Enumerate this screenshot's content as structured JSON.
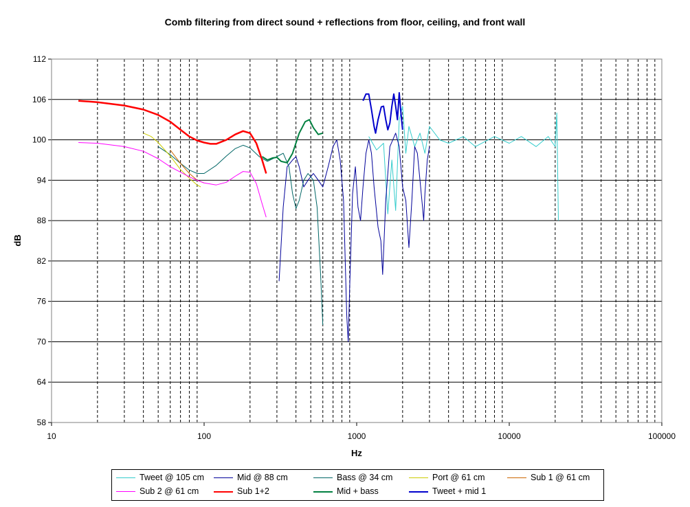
{
  "chart_data": {
    "type": "line",
    "title": "Comb filtering from direct sound + reflections from floor, ceiling, and front wall",
    "xlabel": "Hz",
    "ylabel": "dB",
    "x_scale": "log",
    "xlim": [
      10,
      100000
    ],
    "ylim": [
      58,
      112
    ],
    "y_ticks": [
      58,
      64,
      70,
      76,
      82,
      88,
      94,
      100,
      106,
      112
    ],
    "x_tick_labels": [
      "10",
      "100",
      "1000",
      "10000",
      "100000"
    ],
    "grid": "y major solid, x minor dashed",
    "legend": "bottom",
    "series": [
      {
        "name": "Tweet @ 105 cm",
        "color": "#33CCCC",
        "width": 1,
        "points": [
          [
            1200,
            100.5
          ],
          [
            1350,
            98.5
          ],
          [
            1500,
            99.5
          ],
          [
            1600,
            89
          ],
          [
            1700,
            97
          ],
          [
            1800,
            89.5
          ],
          [
            1900,
            103
          ],
          [
            2000,
            105
          ],
          [
            2100,
            98
          ],
          [
            2200,
            102
          ],
          [
            2400,
            99
          ],
          [
            2600,
            101
          ],
          [
            2800,
            98
          ],
          [
            3000,
            102
          ],
          [
            3500,
            100
          ],
          [
            4000,
            99.5
          ],
          [
            5000,
            100.5
          ],
          [
            6000,
            99
          ],
          [
            8000,
            100.5
          ],
          [
            10000,
            99.5
          ],
          [
            12000,
            100.5
          ],
          [
            15000,
            99
          ],
          [
            18000,
            100.5
          ],
          [
            20000,
            99
          ],
          [
            20500,
            104
          ],
          [
            21000,
            88
          ]
        ]
      },
      {
        "name": "Mid @ 88 cm",
        "color": "#000099",
        "width": 1,
        "points": [
          [
            310,
            79
          ],
          [
            330,
            90
          ],
          [
            350,
            96
          ],
          [
            380,
            97
          ],
          [
            400,
            97.5
          ],
          [
            420,
            96
          ],
          [
            450,
            93
          ],
          [
            480,
            94
          ],
          [
            520,
            95
          ],
          [
            560,
            94
          ],
          [
            600,
            93
          ],
          [
            650,
            96
          ],
          [
            700,
            99
          ],
          [
            740,
            100
          ],
          [
            780,
            97
          ],
          [
            820,
            91
          ],
          [
            860,
            74
          ],
          [
            880,
            70
          ],
          [
            900,
            78
          ],
          [
            940,
            92
          ],
          [
            980,
            96
          ],
          [
            1020,
            90
          ],
          [
            1060,
            88
          ],
          [
            1100,
            93
          ],
          [
            1150,
            98
          ],
          [
            1200,
            100
          ],
          [
            1250,
            98
          ],
          [
            1300,
            93
          ],
          [
            1380,
            87
          ],
          [
            1440,
            85
          ],
          [
            1480,
            80
          ],
          [
            1550,
            91
          ],
          [
            1650,
            99
          ],
          [
            1800,
            101
          ],
          [
            1900,
            99
          ],
          [
            2000,
            93
          ],
          [
            2100,
            91
          ],
          [
            2200,
            84
          ],
          [
            2300,
            91
          ],
          [
            2400,
            99
          ],
          [
            2500,
            98
          ],
          [
            2600,
            94
          ],
          [
            2700,
            90
          ],
          [
            2750,
            88
          ],
          [
            2800,
            92
          ],
          [
            2900,
            97
          ],
          [
            3000,
            99
          ]
        ]
      },
      {
        "name": "Bass @ 34 cm",
        "color": "#006666",
        "width": 1,
        "points": [
          [
            50,
            99
          ],
          [
            60,
            97.8
          ],
          [
            70,
            96.5
          ],
          [
            80,
            95.5
          ],
          [
            90,
            95
          ],
          [
            100,
            95
          ],
          [
            120,
            96.2
          ],
          [
            140,
            97.6
          ],
          [
            160,
            98.7
          ],
          [
            180,
            99.2
          ],
          [
            200,
            98.8
          ],
          [
            230,
            97.5
          ],
          [
            260,
            96.8
          ],
          [
            300,
            97.5
          ],
          [
            330,
            98
          ],
          [
            360,
            96
          ],
          [
            380,
            92
          ],
          [
            400,
            89.8
          ],
          [
            420,
            91
          ],
          [
            450,
            94
          ],
          [
            480,
            95
          ],
          [
            520,
            94
          ],
          [
            550,
            90
          ],
          [
            580,
            80
          ],
          [
            600,
            72.5
          ]
        ]
      },
      {
        "name": "Port @ 61 cm",
        "color": "#CCCC00",
        "width": 1,
        "points": [
          [
            40,
            101
          ],
          [
            45,
            100.5
          ],
          [
            50,
            99.6
          ],
          [
            60,
            97.6
          ],
          [
            70,
            95.6
          ],
          [
            80,
            94.3
          ],
          [
            90,
            93.3
          ],
          [
            95,
            93
          ]
        ]
      },
      {
        "name": "Sub 1 @ 61 cm",
        "color": "#CC6600",
        "width": 1,
        "points": [
          [
            60,
            98.5
          ],
          [
            70,
            96.5
          ],
          [
            80,
            95
          ],
          [
            90,
            94
          ],
          [
            100,
            93.6
          ]
        ]
      },
      {
        "name": "Sub 2 @ 61 cm",
        "color": "#FF00FF",
        "width": 1,
        "points": [
          [
            15,
            99.6
          ],
          [
            20,
            99.5
          ],
          [
            30,
            99
          ],
          [
            40,
            98.3
          ],
          [
            50,
            97.2
          ],
          [
            60,
            96
          ],
          [
            70,
            95.2
          ],
          [
            80,
            94.5
          ],
          [
            90,
            94
          ],
          [
            100,
            93.6
          ],
          [
            120,
            93.3
          ],
          [
            140,
            93.7
          ],
          [
            160,
            94.6
          ],
          [
            180,
            95.3
          ],
          [
            200,
            95.2
          ],
          [
            220,
            93.5
          ],
          [
            240,
            90.5
          ],
          [
            255,
            88.5
          ]
        ]
      },
      {
        "name": "Sub 1+2",
        "color": "#FF0000",
        "width": 2.5,
        "points": [
          [
            15,
            105.8
          ],
          [
            20,
            105.6
          ],
          [
            30,
            105.1
          ],
          [
            40,
            104.5
          ],
          [
            50,
            103.7
          ],
          [
            60,
            102.7
          ],
          [
            70,
            101.5
          ],
          [
            80,
            100.5
          ],
          [
            90,
            99.9
          ],
          [
            100,
            99.6
          ],
          [
            110,
            99.4
          ],
          [
            120,
            99.4
          ],
          [
            140,
            100
          ],
          [
            160,
            100.8
          ],
          [
            180,
            101.3
          ],
          [
            200,
            101
          ],
          [
            220,
            99.5
          ],
          [
            240,
            97
          ],
          [
            255,
            95
          ]
        ]
      },
      {
        "name": "Mid + bass",
        "color": "#008040",
        "width": 2,
        "points": [
          [
            240,
            97.5
          ],
          [
            260,
            97
          ],
          [
            280,
            97.3
          ],
          [
            300,
            97.4
          ],
          [
            320,
            96.8
          ],
          [
            350,
            96.6
          ],
          [
            380,
            98
          ],
          [
            420,
            101
          ],
          [
            460,
            102.7
          ],
          [
            490,
            103
          ],
          [
            520,
            101.8
          ],
          [
            560,
            100.8
          ],
          [
            600,
            101
          ]
        ]
      },
      {
        "name": "Tweet + mid 1",
        "color": "#0000CC",
        "width": 2,
        "points": [
          [
            1100,
            105.8
          ],
          [
            1150,
            106.8
          ],
          [
            1200,
            106.8
          ],
          [
            1250,
            104.5
          ],
          [
            1300,
            102
          ],
          [
            1330,
            101
          ],
          [
            1380,
            103
          ],
          [
            1450,
            104.9
          ],
          [
            1500,
            105
          ],
          [
            1550,
            103
          ],
          [
            1600,
            101.5
          ],
          [
            1650,
            102.5
          ],
          [
            1700,
            105
          ],
          [
            1750,
            106.8
          ],
          [
            1800,
            105
          ],
          [
            1850,
            103
          ],
          [
            1900,
            107
          ],
          [
            1950,
            104
          ],
          [
            2000,
            101.5
          ]
        ]
      }
    ]
  }
}
